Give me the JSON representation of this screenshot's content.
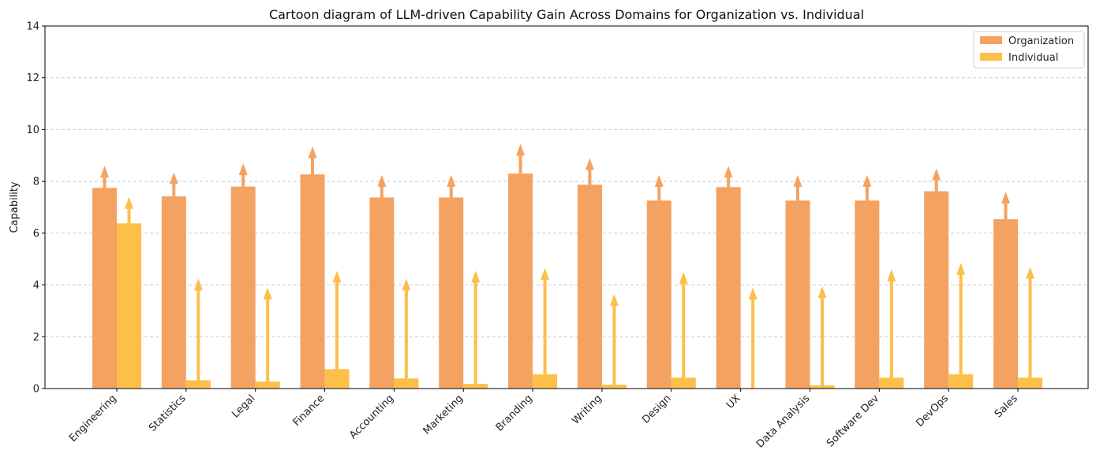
{
  "chart_data": {
    "type": "bar",
    "title": "Cartoon diagram of LLM-driven Capability Gain Across Domains for Organization vs. Individual",
    "xlabel": "",
    "ylabel": "Capability",
    "ylim": [
      0,
      14
    ],
    "yticks": [
      0,
      2,
      4,
      6,
      8,
      10,
      12,
      14
    ],
    "grid": "y-dashed",
    "legend_position": "top-right",
    "categories": [
      "Engineering",
      "Statistics",
      "Legal",
      "Finance",
      "Accounting",
      "Marketing",
      "Branding",
      "Writing",
      "Design",
      "UX",
      "Data Analysis",
      "Software Dev",
      "DevOps",
      "Sales"
    ],
    "series": [
      {
        "name": "Organization",
        "color": "#F4A261",
        "values": [
          7.75,
          7.42,
          7.8,
          8.27,
          7.38,
          7.38,
          8.3,
          7.87,
          7.26,
          7.78,
          7.26,
          7.26,
          7.62,
          6.54
        ],
        "arrow_tips": [
          8.6,
          8.35,
          8.7,
          9.35,
          8.25,
          8.25,
          9.45,
          8.9,
          8.25,
          8.6,
          8.25,
          8.25,
          8.5,
          7.6
        ]
      },
      {
        "name": "Individual",
        "color": "#FCBF49",
        "values": [
          6.38,
          0.32,
          0.27,
          0.75,
          0.39,
          0.18,
          0.55,
          0.15,
          0.42,
          0.0,
          0.12,
          0.42,
          0.55,
          0.42
        ],
        "arrow_tips": [
          7.4,
          4.25,
          3.9,
          4.55,
          4.25,
          4.55,
          4.65,
          3.65,
          4.5,
          3.9,
          3.95,
          4.6,
          4.85,
          4.7
        ]
      }
    ]
  }
}
